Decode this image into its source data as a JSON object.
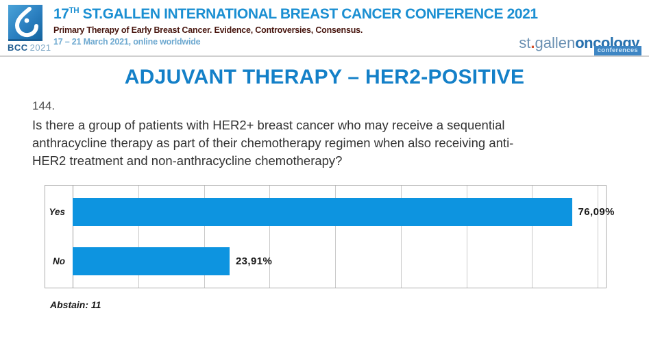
{
  "header": {
    "logo": {
      "acronym": "BCC",
      "year": "2021"
    },
    "conference_title": {
      "prefix": "17",
      "superscript": "TH",
      "rest": " ST.GALLEN INTERNATIONAL BREAST CANCER CONFERENCE 2021"
    },
    "subtitle": "Primary Therapy of Early Breast Cancer. Evidence, Controversies, Consensus.",
    "dates": "17 – 21 March 2021, online worldwide",
    "brand": {
      "st": "st",
      "dot": ".",
      "gallen": "gallen",
      "oncology": "oncology",
      "badge": "conferences"
    }
  },
  "slide": {
    "title": "ADJUVANT THERAPY – HER2-POSITIVE"
  },
  "question": {
    "number": "144.",
    "lines": [
      "Is there a group of patients with HER2+ breast cancer who may receive a sequential",
      "anthracycline therapy as part of their chemotherapy regimen when also receiving anti-",
      "HER2 treatment and non-anthracycline chemotherapy?"
    ]
  },
  "chart_data": {
    "type": "bar",
    "orientation": "horizontal",
    "title": "",
    "categories": [
      "Yes",
      "No"
    ],
    "values": [
      76.09,
      23.91
    ],
    "value_labels": [
      "76,09%",
      "23,91%"
    ],
    "xlim": [
      0,
      80
    ],
    "gridline_step": 10,
    "grid": true,
    "legend": false,
    "abstain_note": "Abstain: 11"
  },
  "colors": {
    "bar_blue": "#0D94E0",
    "title_blue": "#1480C8",
    "header_blue": "#1B8FD2",
    "subtitle_maroon": "#47150E",
    "dates_blue": "#6EA9D0",
    "bcc_blue": "#1E5B8F",
    "bcc_year_blue": "#7FA8C6",
    "stgallen_blue": "#6A90B2",
    "oncology_blue": "#2670AE",
    "orange_dot": "#D4502A",
    "badge_blue": "#3E86C4"
  }
}
